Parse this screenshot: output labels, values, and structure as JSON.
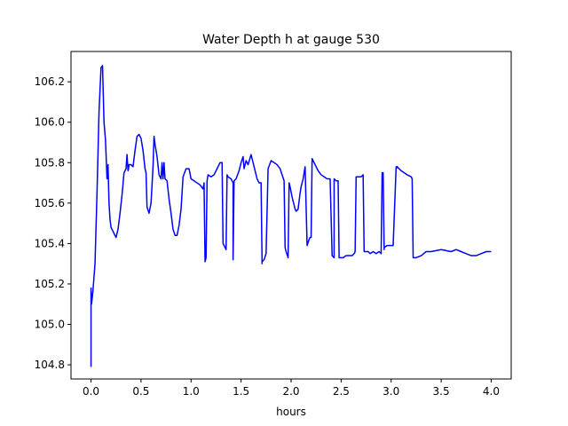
{
  "chart_data": {
    "type": "line",
    "title": "Water Depth h at gauge 530",
    "xlabel": "hours",
    "ylabel": "",
    "xlim": [
      -0.2,
      4.2
    ],
    "ylim": [
      104.73,
      106.35
    ],
    "xticks": [
      0.0,
      0.5,
      1.0,
      1.5,
      2.0,
      2.5,
      3.0,
      3.5,
      4.0
    ],
    "xtick_labels": [
      "0.0",
      "0.5",
      "1.0",
      "1.5",
      "2.0",
      "2.5",
      "3.0",
      "3.5",
      "4.0"
    ],
    "yticks": [
      104.8,
      105.0,
      105.2,
      105.4,
      105.6,
      105.8,
      106.0,
      106.2
    ],
    "ytick_labels": [
      "104.8",
      "105.0",
      "105.2",
      "105.4",
      "105.6",
      "105.8",
      "106.0",
      "106.2"
    ],
    "grid": false,
    "legend": "none",
    "series": [
      {
        "color": "#0000ff",
        "x": [
          0.0,
          0.0,
          0.005,
          0.01,
          0.02,
          0.04,
          0.06,
          0.08,
          0.1,
          0.115,
          0.13,
          0.145,
          0.16,
          0.17,
          0.18,
          0.19,
          0.2,
          0.22,
          0.25,
          0.27,
          0.29,
          0.31,
          0.33,
          0.35,
          0.36,
          0.37,
          0.375,
          0.38,
          0.4,
          0.42,
          0.44,
          0.46,
          0.48,
          0.5,
          0.52,
          0.54,
          0.55,
          0.56,
          0.58,
          0.6,
          0.62,
          0.63,
          0.64,
          0.66,
          0.68,
          0.7,
          0.71,
          0.72,
          0.73,
          0.74,
          0.76,
          0.78,
          0.8,
          0.82,
          0.84,
          0.86,
          0.88,
          0.9,
          0.92,
          0.95,
          0.98,
          1.0,
          1.03,
          1.06,
          1.09,
          1.12,
          1.13,
          1.14,
          1.15,
          1.16,
          1.17,
          1.2,
          1.23,
          1.26,
          1.29,
          1.31,
          1.32,
          1.33,
          1.35,
          1.36,
          1.37,
          1.4,
          1.42,
          1.42,
          1.43,
          1.45,
          1.48,
          1.5,
          1.52,
          1.53,
          1.55,
          1.57,
          1.6,
          1.62,
          1.64,
          1.66,
          1.68,
          1.7,
          1.71,
          1.71,
          1.73,
          1.75,
          1.77,
          1.8,
          1.83,
          1.86,
          1.89,
          1.93,
          1.94,
          1.95,
          1.97,
          1.98,
          1.99,
          2.01,
          2.04,
          2.05,
          2.07,
          2.09,
          2.1,
          2.12,
          2.14,
          2.16,
          2.18,
          2.19,
          2.2,
          2.21,
          2.23,
          2.25,
          2.27,
          2.3,
          2.33,
          2.36,
          2.39,
          2.41,
          2.41,
          2.43,
          2.43,
          2.45,
          2.47,
          2.48,
          2.49,
          2.52,
          2.55,
          2.58,
          2.61,
          2.63,
          2.64,
          2.65,
          2.7,
          2.72,
          2.73,
          2.77,
          2.79,
          2.82,
          2.85,
          2.88,
          2.9,
          2.91,
          2.92,
          2.93,
          2.93,
          2.96,
          2.99,
          3.02,
          3.05,
          3.05,
          3.06,
          3.08,
          3.1,
          3.13,
          3.16,
          3.2,
          3.21,
          3.22,
          3.25,
          3.3,
          3.35,
          3.4,
          3.5,
          3.6,
          3.65,
          3.7,
          3.75,
          3.8,
          3.85,
          3.9,
          3.95,
          4.0
        ],
        "y": [
          104.79,
          105.18,
          105.1,
          105.12,
          105.17,
          105.3,
          105.65,
          106.05,
          106.27,
          106.28,
          106.0,
          105.91,
          105.72,
          105.79,
          105.6,
          105.52,
          105.48,
          105.46,
          105.43,
          105.47,
          105.55,
          105.64,
          105.75,
          105.77,
          105.84,
          105.76,
          105.77,
          105.79,
          105.79,
          105.78,
          105.86,
          105.93,
          105.94,
          105.92,
          105.86,
          105.77,
          105.75,
          105.58,
          105.55,
          105.6,
          105.78,
          105.93,
          105.89,
          105.83,
          105.74,
          105.72,
          105.8,
          105.72,
          105.8,
          105.72,
          105.71,
          105.62,
          105.55,
          105.47,
          105.44,
          105.44,
          105.49,
          105.57,
          105.73,
          105.77,
          105.77,
          105.72,
          105.71,
          105.7,
          105.69,
          105.67,
          105.7,
          105.31,
          105.33,
          105.71,
          105.74,
          105.73,
          105.74,
          105.77,
          105.8,
          105.8,
          105.4,
          105.39,
          105.37,
          105.74,
          105.73,
          105.72,
          105.7,
          105.32,
          105.71,
          105.72,
          105.76,
          105.8,
          105.83,
          105.77,
          105.81,
          105.79,
          105.84,
          105.8,
          105.76,
          105.72,
          105.7,
          105.7,
          105.3,
          105.31,
          105.32,
          105.35,
          105.77,
          105.81,
          105.8,
          105.79,
          105.77,
          105.71,
          105.38,
          105.36,
          105.33,
          105.7,
          105.68,
          105.63,
          105.57,
          105.56,
          105.57,
          105.65,
          105.68,
          105.72,
          105.78,
          105.39,
          105.42,
          105.43,
          105.43,
          105.82,
          105.8,
          105.78,
          105.76,
          105.74,
          105.73,
          105.72,
          105.72,
          105.34,
          105.34,
          105.33,
          105.72,
          105.71,
          105.71,
          105.33,
          105.33,
          105.33,
          105.34,
          105.34,
          105.34,
          105.35,
          105.36,
          105.73,
          105.73,
          105.74,
          105.36,
          105.36,
          105.35,
          105.36,
          105.35,
          105.36,
          105.35,
          105.75,
          105.75,
          105.37,
          105.38,
          105.39,
          105.39,
          105.39,
          105.78,
          105.77,
          105.78,
          105.77,
          105.76,
          105.75,
          105.74,
          105.73,
          105.72,
          105.33,
          105.33,
          105.34,
          105.36,
          105.36,
          105.37,
          105.36,
          105.37,
          105.36,
          105.35,
          105.34,
          105.34,
          105.35,
          105.36,
          105.36
        ]
      }
    ]
  }
}
